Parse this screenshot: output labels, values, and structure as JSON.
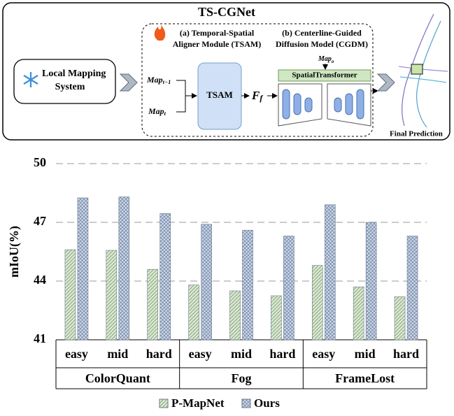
{
  "diagram": {
    "title": "TS-CGNet",
    "input": [
      "Local Mapping",
      "System"
    ],
    "module_a": [
      "(a)  Temporal-Spatial",
      "Aligner Module  (TSAM)"
    ],
    "module_b": [
      "(b)  Centerline-Guided",
      "Diffusion Model  (CGDM)"
    ],
    "map_prev": {
      "base": "Map",
      "sub": "t−1"
    },
    "map_cur": {
      "base": "Map",
      "sub": "t"
    },
    "map_o": {
      "base": "Map",
      "sub": "o"
    },
    "tsam": "TSAM",
    "feature": {
      "base": "F",
      "sub": "f"
    },
    "transformer": "SpatialTransformer",
    "output": "Final Prediction"
  },
  "chart_data": {
    "type": "bar",
    "ylabel": "mIoU(%)",
    "categories": [
      "easy",
      "mid",
      "hard",
      "easy",
      "mid",
      "hard",
      "easy",
      "mid",
      "hard"
    ],
    "groups": [
      "ColorQuant",
      "Fog",
      "FrameLost"
    ],
    "series": [
      {
        "name": "P-MapNet",
        "color": "#d6e9c6",
        "values": [
          45.6,
          45.57,
          44.6,
          43.8,
          43.5,
          43.25,
          44.8,
          43.7,
          43.2
        ]
      },
      {
        "name": "Ours",
        "color": "#c9d6f0",
        "values": [
          48.25,
          48.3,
          47.45,
          46.9,
          46.6,
          46.3,
          47.9,
          47.0,
          46.3
        ]
      }
    ],
    "ylim": [
      41,
      50
    ],
    "yticks": [
      41,
      44,
      47,
      50
    ],
    "grid": true,
    "legend": "bottom"
  }
}
